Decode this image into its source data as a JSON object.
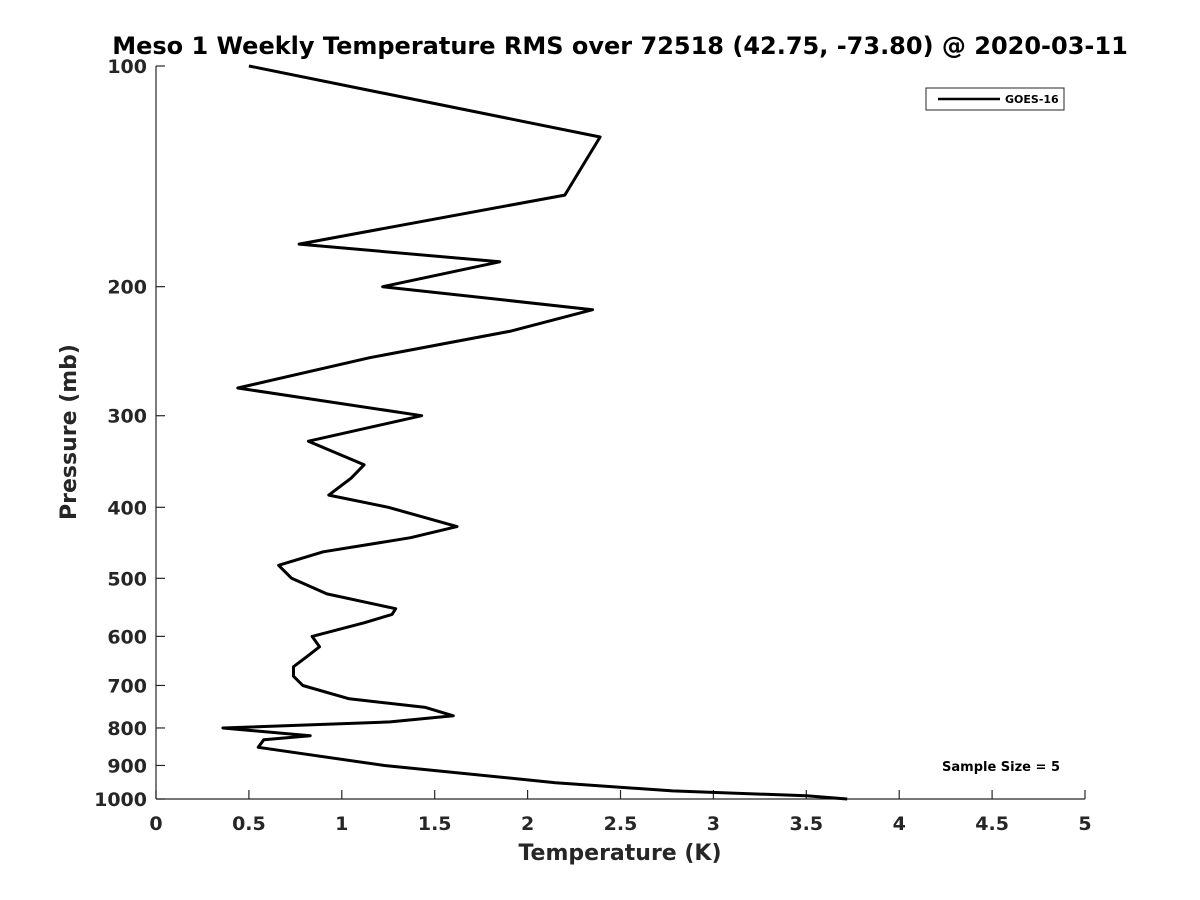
{
  "chart_data": {
    "type": "line",
    "title": "Meso 1 Weekly Temperature RMS over 72518 (42.75, -73.80) @ 2020-03-11",
    "xlabel": "Temperature (K)",
    "ylabel": "Pressure (mb)",
    "xlim": [
      0,
      5
    ],
    "ylim": [
      100,
      1000
    ],
    "yscale": "log",
    "y_reversed": true,
    "grid": false,
    "legend_position": "top-right",
    "x_ticks": [
      0,
      0.5,
      1,
      1.5,
      2,
      2.5,
      3,
      3.5,
      4,
      4.5,
      5
    ],
    "x_tick_labels": [
      "0",
      "0.5",
      "1",
      "1.5",
      "2",
      "2.5",
      "3",
      "3.5",
      "4",
      "4.5",
      "5"
    ],
    "y_ticks": [
      100,
      200,
      300,
      400,
      500,
      600,
      700,
      800,
      900,
      1000
    ],
    "y_tick_labels": [
      "100",
      "200",
      "300",
      "400",
      "500",
      "600",
      "700",
      "800",
      "900",
      "1000"
    ],
    "series": [
      {
        "name": "GOES-16",
        "color": "#000000",
        "points": [
          [
            0.5,
            100
          ],
          [
            2.39,
            125
          ],
          [
            2.2,
            150
          ],
          [
            0.77,
            175
          ],
          [
            1.85,
            185
          ],
          [
            1.22,
            200
          ],
          [
            2.35,
            215
          ],
          [
            1.91,
            230
          ],
          [
            1.15,
            250
          ],
          [
            0.44,
            275
          ],
          [
            1.43,
            300
          ],
          [
            0.82,
            325
          ],
          [
            1.12,
            350
          ],
          [
            1.05,
            365
          ],
          [
            0.93,
            385
          ],
          [
            1.25,
            400
          ],
          [
            1.62,
            425
          ],
          [
            1.37,
            440
          ],
          [
            0.9,
            460
          ],
          [
            0.66,
            480
          ],
          [
            0.73,
            500
          ],
          [
            0.92,
            525
          ],
          [
            1.29,
            550
          ],
          [
            1.27,
            560
          ],
          [
            1.12,
            575
          ],
          [
            0.84,
            600
          ],
          [
            0.88,
            620
          ],
          [
            0.81,
            640
          ],
          [
            0.74,
            660
          ],
          [
            0.74,
            680
          ],
          [
            0.79,
            700
          ],
          [
            1.04,
            730
          ],
          [
            1.45,
            750
          ],
          [
            1.6,
            770
          ],
          [
            1.26,
            785
          ],
          [
            0.36,
            800
          ],
          [
            0.83,
            820
          ],
          [
            0.58,
            830
          ],
          [
            0.55,
            850
          ],
          [
            1.23,
            900
          ],
          [
            2.15,
            950
          ],
          [
            2.78,
            975
          ],
          [
            3.5,
            990
          ],
          [
            3.72,
            1000
          ]
        ]
      }
    ],
    "annotations": [
      "Sample Size = 5"
    ]
  }
}
